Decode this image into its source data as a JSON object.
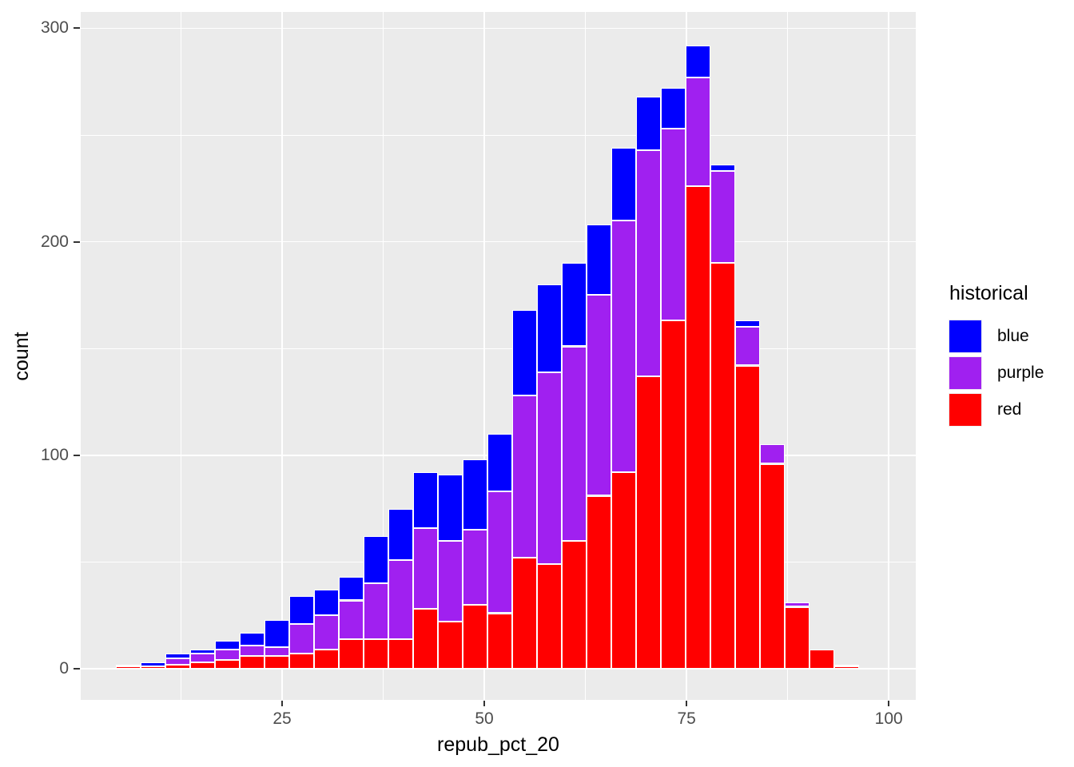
{
  "axes": {
    "x": {
      "title": "repub_pct_20",
      "tick_values": [
        25,
        50,
        75,
        100
      ],
      "tick_labels": [
        "25",
        "50",
        "75",
        "100"
      ]
    },
    "y": {
      "title": "count",
      "tick_values": [
        0,
        100,
        200,
        300
      ],
      "tick_labels": [
        "0",
        "100",
        "200",
        "300"
      ]
    }
  },
  "legend": {
    "title": "historical",
    "entries": [
      {
        "label": "blue",
        "color": "#0000FF"
      },
      {
        "label": "purple",
        "color": "#A020F0"
      },
      {
        "label": "red",
        "color": "#FF0000"
      }
    ]
  },
  "chart_data": {
    "type": "bar",
    "subtype": "stacked-histogram",
    "title": "",
    "xlabel": "repub_pct_20",
    "ylabel": "count",
    "legend_title": "historical",
    "legend_position": "right",
    "grid": true,
    "panel_background": "#EBEBEB",
    "gridline_color": "#FFFFFF",
    "xlim": [
      0,
      104
    ],
    "ylim": [
      0,
      300
    ],
    "x_ticks": [
      25,
      50,
      75,
      100
    ],
    "y_ticks": [
      0,
      100,
      200,
      300
    ],
    "binwidth": 3.06,
    "bin_centers": [
      5.98,
      9.04,
      12.1,
      15.17,
      18.23,
      21.29,
      24.35,
      27.42,
      30.48,
      33.54,
      36.6,
      39.67,
      42.73,
      45.79,
      48.85,
      51.92,
      54.98,
      58.04,
      61.1,
      64.17,
      67.23,
      70.29,
      73.35,
      76.42,
      79.48,
      82.54,
      85.6,
      88.67,
      91.73,
      94.79
    ],
    "stack_order_bottom_to_top": [
      "red",
      "purple",
      "blue"
    ],
    "series": [
      {
        "name": "blue",
        "color": "#0000FF",
        "values": [
          1,
          2,
          2,
          2,
          4,
          6,
          13,
          13,
          12,
          11,
          22,
          24,
          26,
          31,
          33,
          27,
          40,
          41,
          39,
          33,
          34,
          25,
          19,
          15,
          3,
          3,
          0,
          0,
          0,
          0
        ]
      },
      {
        "name": "purple",
        "color": "#A020F0",
        "values": [
          0,
          0,
          3,
          4,
          5,
          5,
          4,
          14,
          16,
          18,
          26,
          37,
          38,
          38,
          35,
          57,
          76,
          90,
          91,
          94,
          118,
          106,
          90,
          51,
          43,
          18,
          9,
          2,
          0,
          1
        ]
      },
      {
        "name": "red",
        "color": "#FF0000",
        "values": [
          1,
          1,
          2,
          3,
          4,
          6,
          6,
          7,
          9,
          14,
          14,
          14,
          28,
          22,
          30,
          26,
          52,
          49,
          60,
          81,
          92,
          137,
          163,
          226,
          190,
          142,
          96,
          29,
          9,
          1
        ]
      }
    ],
    "bar_totals": [
      2,
      3,
      7,
      9,
      13,
      17,
      23,
      34,
      37,
      43,
      62,
      75,
      92,
      91,
      98,
      110,
      168,
      180,
      190,
      208,
      244,
      268,
      272,
      292,
      236,
      163,
      105,
      31,
      9,
      2
    ]
  }
}
